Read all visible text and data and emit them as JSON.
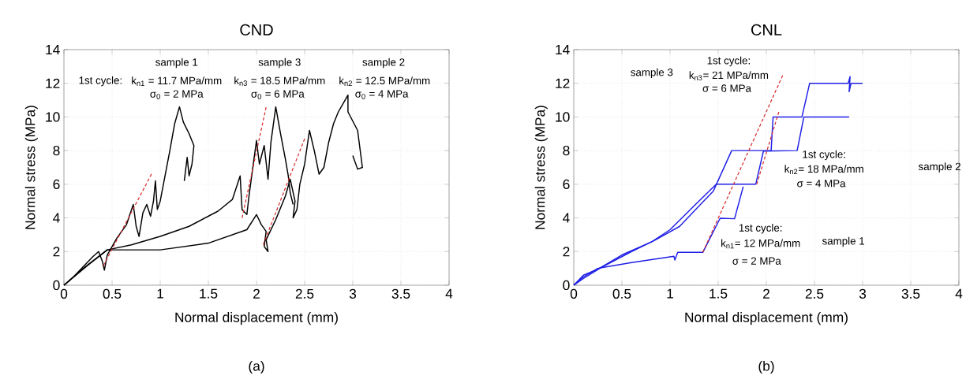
{
  "chart_data": [
    {
      "type": "line",
      "title": "CND",
      "xlabel": "Normal displacement (mm)",
      "ylabel": "Normal stress (MPa)",
      "xlim": [
        0,
        4
      ],
      "ylim": [
        0,
        14
      ],
      "xticks": [
        0,
        0.5,
        1,
        1.5,
        2,
        2.5,
        3,
        3.5,
        4
      ],
      "yticks": [
        0,
        2,
        4,
        6,
        8,
        10,
        12,
        14
      ],
      "grid": true,
      "series": [
        {
          "color": "#000000",
          "x": [
            0,
            0.1,
            0.2,
            0.3,
            0.36,
            0.4,
            0.42,
            0.45,
            0.55,
            0.65,
            0.72,
            0.75,
            0.78,
            0.82,
            0.86,
            0.9,
            0.93,
            0.95,
            0.97,
            1.0,
            1.05,
            1.1,
            1.15,
            1.2,
            1.24,
            1.3,
            1.35,
            1.33,
            1.3,
            1.28,
            1.25
          ],
          "values": [
            0,
            0.5,
            1.1,
            1.7,
            2.0,
            1.4,
            0.9,
            1.8,
            2.8,
            3.6,
            4.8,
            3.5,
            2.9,
            4.3,
            4.8,
            4.1,
            5.0,
            6.2,
            4.5,
            5.0,
            6.5,
            8.0,
            9.6,
            10.6,
            9.7,
            9.0,
            8.3,
            7.2,
            6.5,
            7.6,
            6.2
          ]
        },
        {
          "color": "#000000",
          "x": [
            0,
            0.2,
            0.45,
            0.7,
            1.0,
            1.3,
            1.6,
            1.75,
            1.83,
            1.85,
            1.9,
            1.92,
            1.95,
            2.0,
            2.03,
            2.08,
            2.12,
            2.15,
            2.2,
            2.25,
            2.3,
            2.33,
            2.35,
            2.38
          ],
          "values": [
            0,
            1.0,
            2.1,
            2.4,
            2.9,
            3.5,
            4.4,
            5.1,
            6.5,
            4.5,
            4.2,
            5.2,
            6.5,
            8.6,
            7.2,
            8.3,
            6.3,
            8.5,
            10.6,
            9.0,
            7.5,
            6.5,
            5.5,
            4.8
          ]
        },
        {
          "color": "#000000",
          "x": [
            0,
            0.25,
            0.45,
            1.0,
            1.5,
            1.9,
            2.0,
            2.05,
            2.1,
            2.08,
            2.12,
            2.1,
            2.2,
            2.3,
            2.35,
            2.4,
            2.38,
            2.42,
            2.45,
            2.5,
            2.55,
            2.6,
            2.65,
            2.7,
            2.75,
            2.8,
            2.85,
            2.9,
            2.95,
            2.95,
            3.05,
            3.1,
            3.05,
            3.0
          ],
          "values": [
            0,
            1.2,
            2.1,
            2.1,
            2.5,
            3.3,
            4.2,
            3.6,
            3.2,
            2.3,
            2.0,
            2.7,
            3.9,
            5.3,
            6.3,
            5.0,
            4.0,
            4.5,
            6.0,
            7.2,
            9.2,
            8.0,
            6.6,
            7.0,
            8.5,
            9.6,
            10.3,
            10.8,
            11.3,
            10.3,
            9.2,
            7.0,
            6.9,
            7.7
          ]
        },
        {
          "type": "line",
          "color": "#d62728",
          "line_style": "dashed",
          "x": [
            0.41,
            0.91
          ],
          "values": [
            1.17,
            6.61
          ]
        },
        {
          "type": "line",
          "color": "#d62728",
          "line_style": "dashed",
          "x": [
            1.85,
            2.1
          ],
          "values": [
            4.0,
            10.58
          ]
        },
        {
          "type": "line",
          "color": "#d62728",
          "line_style": "dashed",
          "x": [
            2.07,
            2.5
          ],
          "values": [
            2.41,
            8.71
          ]
        }
      ],
      "annotations": [
        "sample 1",
        "1st cycle:",
        "k$_{n1}$ = 11.7 MPa/mm",
        "σ$_{0}$ = 2 MPa",
        "sample 3",
        "k$_{n3}$ = 18.5 MPa/mm",
        "σ$_{0}$ = 6 MPa",
        "sample 2",
        "k$_{n2}$ = 12.5 MPa/mm",
        "σ$_{0}$ = 4 MPa",
        "(a)"
      ]
    },
    {
      "type": "line",
      "title": "CNL",
      "xlabel": "Normal displacement (mm)",
      "ylabel": "Normal stress (MPa)",
      "xlim": [
        0,
        4
      ],
      "ylim": [
        0,
        14
      ],
      "xticks": [
        0,
        0.5,
        1,
        1.5,
        2,
        2.5,
        3,
        3.5,
        4
      ],
      "yticks": [
        0,
        2,
        4,
        6,
        8,
        10,
        12,
        14
      ],
      "grid": true,
      "series": [
        {
          "color": "#1f1fe6",
          "x": [
            0,
            0.1,
            0.25,
            0.6,
            1.04,
            1.05,
            1.08,
            1.34,
            1.52,
            1.67,
            1.76
          ],
          "values": [
            0,
            0.5,
            1.0,
            1.35,
            1.72,
            1.5,
            1.95,
            1.95,
            3.98,
            3.95,
            5.86
          ]
        },
        {
          "color": "#1f1fe6",
          "x": [
            0,
            0.1,
            0.25,
            0.5,
            0.81,
            1.0,
            1.3,
            1.48,
            1.89,
            1.97,
            2.32,
            2.39,
            2.86
          ],
          "values": [
            0,
            0.6,
            0.95,
            1.8,
            2.58,
            3.3,
            5.0,
            6.0,
            6.0,
            7.97,
            8.0,
            10.0,
            10.0
          ]
        },
        {
          "color": "#1f1fe6",
          "x": [
            0,
            0.1,
            0.3,
            0.6,
            0.85,
            1.1,
            1.3,
            1.45,
            1.64,
            2.05,
            2.07,
            2.37,
            2.45,
            2.85,
            2.87,
            2.86,
            2.88,
            3.0
          ],
          "values": [
            0,
            0.4,
            1.1,
            2.0,
            2.7,
            3.5,
            4.7,
            5.6,
            8.0,
            8.0,
            10.0,
            10.0,
            12.0,
            12.0,
            12.4,
            11.5,
            12.0,
            12.0
          ]
        },
        {
          "type": "line",
          "color": "#d62728",
          "line_style": "dashed",
          "x": [
            1.34,
            2.17
          ],
          "values": [
            1.95,
            12.47
          ]
        },
        {
          "type": "line",
          "color": "#d62728",
          "line_style": "dashed",
          "x": [
            1.9,
            2.13
          ],
          "values": [
            6.0,
            10.3
          ]
        }
      ],
      "annotations": [
        "sample 3",
        "1st cycle:",
        "k$_{n3}$= 21 MPa/mm",
        "σ = 6 MPa",
        "1st cycle:",
        "k$_{n2}$= 18 MPa/mm",
        "σ = 4 MPa",
        "sample 2",
        "1st cycle:",
        "k$_{n1}$= 12 MPa/mm",
        "σ = 2 MPa",
        "sample 1",
        "(b)"
      ]
    }
  ]
}
